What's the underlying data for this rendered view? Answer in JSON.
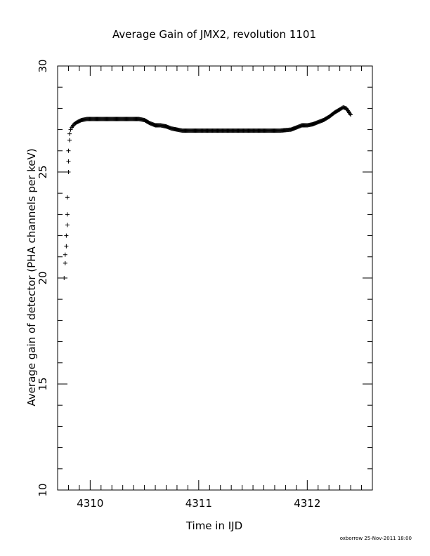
{
  "chart_data": {
    "type": "scatter",
    "title": "Average Gain of JMX2, revolution 1101",
    "xlabel": "Time in IJD",
    "ylabel": "Average gain of detector (PHA channels per keV)",
    "footer": "oxborrow 25-Nov-2011 18:00",
    "xlim": [
      4309.7,
      4312.6
    ],
    "ylim": [
      10,
      30
    ],
    "x_ticks": [
      4310,
      4311,
      4312
    ],
    "y_ticks": [
      10,
      15,
      20,
      25,
      30
    ],
    "grid": false,
    "marker": "plus",
    "series": [
      {
        "x": [
          4309.76,
          4309.77,
          4309.77,
          4309.78,
          4309.78,
          4309.79,
          4309.79,
          4309.79,
          4309.8,
          4309.8,
          4309.8,
          4309.81,
          4309.81,
          4309.82,
          4309.83,
          4309.85,
          4309.88,
          4309.92,
          4309.97,
          4310.05,
          4310.15,
          4310.25,
          4310.35,
          4310.45,
          4310.5,
          4310.55,
          4310.6,
          4310.65,
          4310.7,
          4310.75,
          4310.8,
          4310.85,
          4310.9,
          4311.0,
          4311.2,
          4311.4,
          4311.6,
          4311.75,
          4311.85,
          4311.9,
          4311.95,
          4312.0,
          4312.05,
          4312.1,
          4312.15,
          4312.2,
          4312.25,
          4312.3,
          4312.33,
          4312.36,
          4312.38,
          4312.4
        ],
        "y": [
          20.0,
          20.7,
          21.1,
          21.5,
          22.0,
          22.5,
          23.0,
          23.8,
          25.0,
          25.5,
          26.0,
          26.5,
          26.8,
          27.0,
          27.1,
          27.25,
          27.35,
          27.45,
          27.5,
          27.5,
          27.5,
          27.5,
          27.5,
          27.5,
          27.45,
          27.3,
          27.2,
          27.2,
          27.15,
          27.05,
          27.0,
          26.95,
          26.95,
          26.95,
          26.95,
          26.95,
          26.95,
          26.95,
          27.0,
          27.1,
          27.2,
          27.2,
          27.25,
          27.35,
          27.45,
          27.6,
          27.8,
          27.95,
          28.05,
          28.0,
          27.85,
          27.7
        ]
      }
    ]
  }
}
